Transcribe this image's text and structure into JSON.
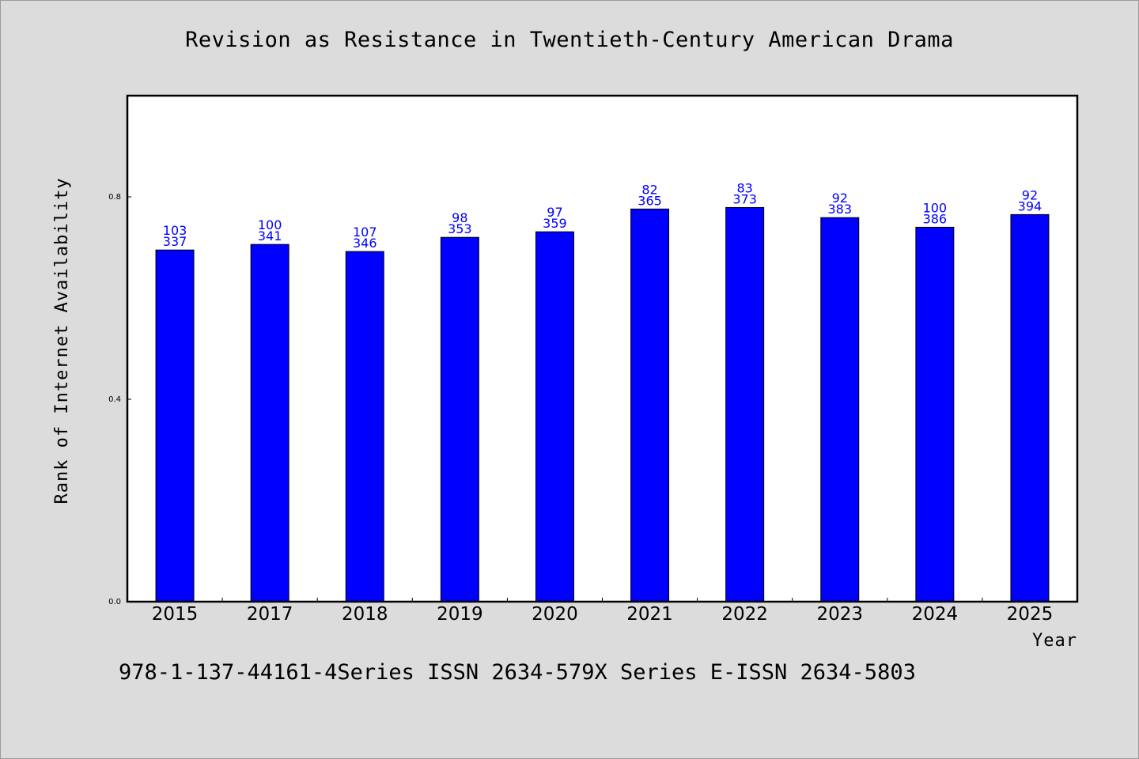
{
  "chart_data": {
    "type": "bar",
    "title": "Revision as Resistance in Twentieth-Century American Drama",
    "xlabel": "Year",
    "ylabel": "Rank of Internet Availability",
    "categories": [
      "2015",
      "2017",
      "2018",
      "2019",
      "2020",
      "2021",
      "2022",
      "2023",
      "2024",
      "2025"
    ],
    "values": [
      0.695,
      0.706,
      0.692,
      0.72,
      0.731,
      0.776,
      0.779,
      0.759,
      0.74,
      0.765
    ],
    "label_top": [
      "103",
      "100",
      "107",
      "98",
      "97",
      "82",
      "83",
      "92",
      "100",
      "92"
    ],
    "label_bottom": [
      "337",
      "341",
      "346",
      "353",
      "359",
      "365",
      "373",
      "383",
      "386",
      "394"
    ],
    "yticks": [
      "0.0",
      "0.4",
      "0.8"
    ],
    "ylim": [
      0,
      1.0
    ],
    "grid": false,
    "bar_color": "#0000ff",
    "label_color": "#0000ff",
    "background_color": "#dcdcdc",
    "plot_background_color": "#ffffff"
  },
  "footer": {
    "text": "978-1-137-44161-4Series ISSN 2634-579X Series E-ISSN 2634-5803"
  }
}
